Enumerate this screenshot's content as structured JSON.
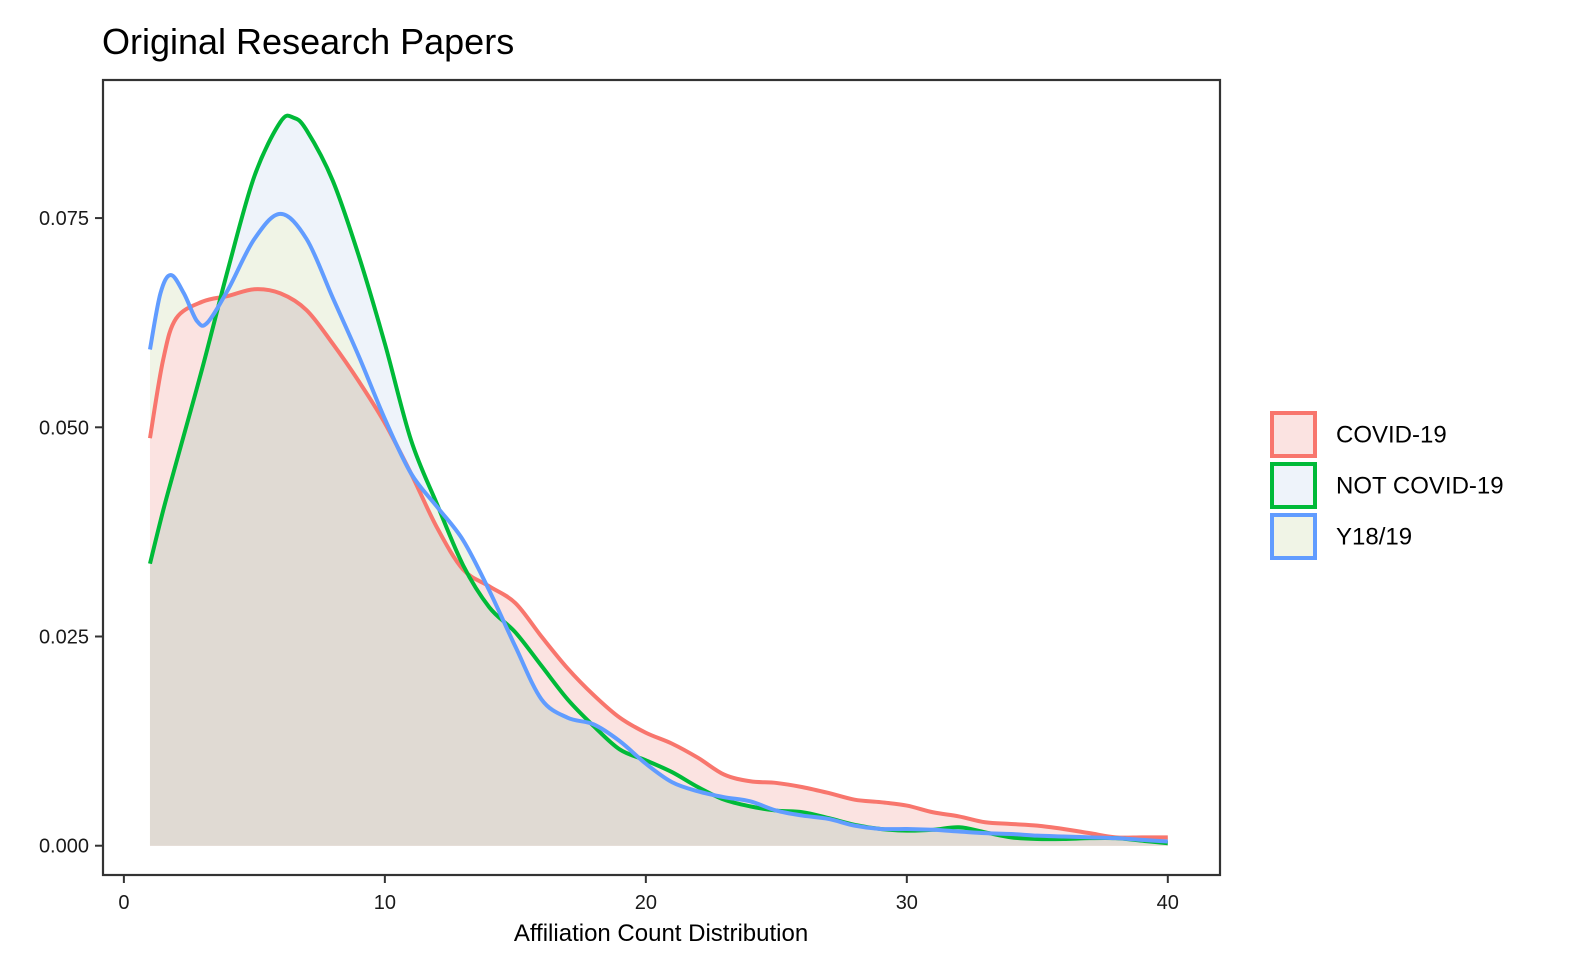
{
  "chart_data": {
    "type": "area",
    "subtype": "density",
    "title": "Original Research Papers",
    "xlabel": "Affiliation Count Distribution",
    "ylabel": "",
    "xlim": [
      -0.8,
      42
    ],
    "ylim": [
      -0.0035,
      0.0915
    ],
    "x_ticks": [
      0,
      10,
      20,
      30,
      40
    ],
    "y_ticks": [
      0.0,
      0.025,
      0.05,
      0.075
    ],
    "x_tick_labels": [
      "0",
      "10",
      "20",
      "30",
      "40"
    ],
    "y_tick_labels": [
      "0.000",
      "0.025",
      "0.050",
      "0.075"
    ],
    "grid": false,
    "legend_position": "right",
    "series": [
      {
        "name": "COVID-19",
        "color": "#F8766D",
        "fill": "#FBE3E1",
        "points": [
          [
            1,
            0.0487
          ],
          [
            1.5,
            0.058
          ],
          [
            2,
            0.063
          ],
          [
            3,
            0.065
          ],
          [
            4,
            0.0657
          ],
          [
            5,
            0.0665
          ],
          [
            6,
            0.066
          ],
          [
            7,
            0.064
          ],
          [
            8,
            0.06
          ],
          [
            9,
            0.0555
          ],
          [
            10,
            0.0505
          ],
          [
            11,
            0.0445
          ],
          [
            12,
            0.038
          ],
          [
            13,
            0.033
          ],
          [
            14,
            0.031
          ],
          [
            15,
            0.029
          ],
          [
            16,
            0.025
          ],
          [
            17,
            0.0212
          ],
          [
            18,
            0.018
          ],
          [
            19,
            0.0153
          ],
          [
            20,
            0.0135
          ],
          [
            21,
            0.0122
          ],
          [
            22,
            0.0105
          ],
          [
            23,
            0.0085
          ],
          [
            24,
            0.0077
          ],
          [
            25,
            0.0075
          ],
          [
            26,
            0.007
          ],
          [
            27,
            0.0063
          ],
          [
            28,
            0.0055
          ],
          [
            29,
            0.0052
          ],
          [
            30,
            0.0048
          ],
          [
            31,
            0.004
          ],
          [
            32,
            0.0035
          ],
          [
            33,
            0.0028
          ],
          [
            34,
            0.0026
          ],
          [
            35,
            0.0024
          ],
          [
            36,
            0.002
          ],
          [
            37,
            0.0015
          ],
          [
            38,
            0.001
          ],
          [
            39,
            0.001
          ],
          [
            40,
            0.001
          ]
        ]
      },
      {
        "name": "NOT COVID-19",
        "color": "#00BA38",
        "fill": "#EEF3FA",
        "points": [
          [
            1,
            0.0337
          ],
          [
            1.5,
            0.04
          ],
          [
            2,
            0.0457
          ],
          [
            3,
            0.057
          ],
          [
            4,
            0.069
          ],
          [
            5,
            0.08
          ],
          [
            6,
            0.0865
          ],
          [
            6.5,
            0.087
          ],
          [
            7,
            0.0855
          ],
          [
            8,
            0.0795
          ],
          [
            9,
            0.0705
          ],
          [
            10,
            0.06
          ],
          [
            11,
            0.0485
          ],
          [
            12,
            0.0408
          ],
          [
            13,
            0.0335
          ],
          [
            14,
            0.0285
          ],
          [
            15,
            0.0255
          ],
          [
            16,
            0.0215
          ],
          [
            17,
            0.0175
          ],
          [
            18,
            0.0143
          ],
          [
            19,
            0.0115
          ],
          [
            20,
            0.0102
          ],
          [
            21,
            0.0088
          ],
          [
            22,
            0.007
          ],
          [
            23,
            0.0055
          ],
          [
            24,
            0.0047
          ],
          [
            25,
            0.0042
          ],
          [
            26,
            0.004
          ],
          [
            27,
            0.0033
          ],
          [
            28,
            0.0025
          ],
          [
            29,
            0.002
          ],
          [
            30,
            0.0018
          ],
          [
            31,
            0.0019
          ],
          [
            32,
            0.0022
          ],
          [
            33,
            0.0016
          ],
          [
            34,
            0.001
          ],
          [
            35,
            0.0008
          ],
          [
            36,
            0.0008
          ],
          [
            37,
            0.0009
          ],
          [
            38,
            0.0009
          ],
          [
            39,
            0.0006
          ],
          [
            40,
            0.0003
          ]
        ]
      },
      {
        "name": "Y18/19",
        "color": "#619CFF",
        "fill": "#F0F4E6",
        "points": [
          [
            1,
            0.0593
          ],
          [
            1.4,
            0.066
          ],
          [
            1.8,
            0.0682
          ],
          [
            2.3,
            0.066
          ],
          [
            2.8,
            0.0627
          ],
          [
            3.2,
            0.0625
          ],
          [
            4,
            0.0665
          ],
          [
            5,
            0.0725
          ],
          [
            6,
            0.0755
          ],
          [
            7,
            0.0725
          ],
          [
            8,
            0.0655
          ],
          [
            9,
            0.0585
          ],
          [
            10,
            0.051
          ],
          [
            11,
            0.0445
          ],
          [
            12,
            0.0405
          ],
          [
            13,
            0.0365
          ],
          [
            14,
            0.0305
          ],
          [
            15,
            0.0238
          ],
          [
            16,
            0.0175
          ],
          [
            17,
            0.0153
          ],
          [
            18,
            0.0145
          ],
          [
            19,
            0.0125
          ],
          [
            20,
            0.0098
          ],
          [
            21,
            0.0076
          ],
          [
            22,
            0.0065
          ],
          [
            23,
            0.0058
          ],
          [
            24,
            0.0053
          ],
          [
            25,
            0.0042
          ],
          [
            26,
            0.0036
          ],
          [
            27,
            0.0032
          ],
          [
            28,
            0.0024
          ],
          [
            29,
            0.002
          ],
          [
            30,
            0.002
          ],
          [
            31,
            0.0019
          ],
          [
            32,
            0.0017
          ],
          [
            33,
            0.0015
          ],
          [
            34,
            0.0014
          ],
          [
            35,
            0.0012
          ],
          [
            36,
            0.0011
          ],
          [
            37,
            0.001
          ],
          [
            38,
            0.0009
          ],
          [
            39,
            0.0007
          ],
          [
            40,
            0.0005
          ]
        ]
      }
    ],
    "blend_fill_color": "#E0DAD3"
  }
}
